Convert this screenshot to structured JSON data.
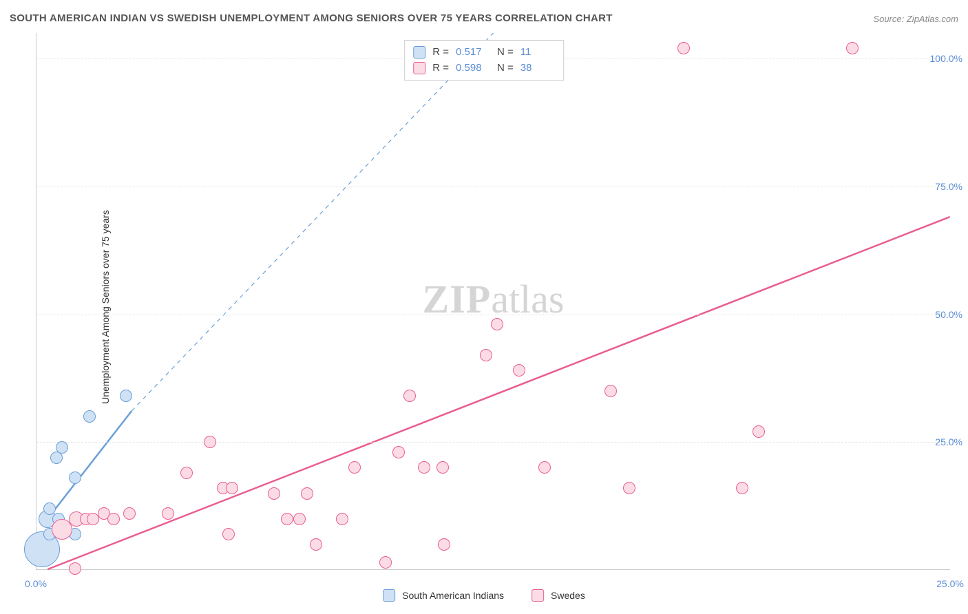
{
  "title": "SOUTH AMERICAN INDIAN VS SWEDISH UNEMPLOYMENT AMONG SENIORS OVER 75 YEARS CORRELATION CHART",
  "source_label": "Source:",
  "source_value": "ZipAtlas.com",
  "y_axis_label": "Unemployment Among Seniors over 75 years",
  "watermark_zip": "ZIP",
  "watermark_atlas": "atlas",
  "chart": {
    "type": "scatter",
    "xlim": [
      0,
      25
    ],
    "ylim": [
      0,
      105
    ],
    "x_ticks": [
      {
        "v": 0,
        "label": "0.0%"
      },
      {
        "v": 25,
        "label": "25.0%"
      }
    ],
    "y_ticks": [
      {
        "v": 25,
        "label": "25.0%"
      },
      {
        "v": 50,
        "label": "50.0%"
      },
      {
        "v": 75,
        "label": "75.0%"
      },
      {
        "v": 100,
        "label": "100.0%"
      }
    ],
    "gridlines_y": [
      25,
      50,
      75,
      100
    ],
    "background_color": "#ffffff",
    "grid_color": "#e5e5e5",
    "axis_color": "#cccccc",
    "tick_label_color": "#5b8dd6",
    "title_color": "#555555",
    "title_fontsize": 15,
    "label_fontsize": 14,
    "point_radius": 9,
    "point_stroke_width": 1.5,
    "series": [
      {
        "id": "sai",
        "label": "South American Indians",
        "fill": "#cfe1f5",
        "stroke": "#6a9ed8",
        "R": "0.517",
        "N": "11",
        "trend": {
          "x1": 0.2,
          "y1": 9,
          "x2": 2.6,
          "y2": 31,
          "dash_x2": 12.5,
          "dash_y2": 105,
          "width": 2.5
        },
        "points": [
          {
            "x": 0.15,
            "y": 4,
            "r": 26
          },
          {
            "x": 0.3,
            "y": 10,
            "r": 13
          },
          {
            "x": 0.35,
            "y": 7,
            "r": 9
          },
          {
            "x": 0.35,
            "y": 12,
            "r": 9
          },
          {
            "x": 0.6,
            "y": 10,
            "r": 9
          },
          {
            "x": 0.55,
            "y": 22,
            "r": 9
          },
          {
            "x": 0.7,
            "y": 24,
            "r": 9
          },
          {
            "x": 1.05,
            "y": 18,
            "r": 9
          },
          {
            "x": 1.05,
            "y": 7,
            "r": 9
          },
          {
            "x": 1.45,
            "y": 30,
            "r": 9
          },
          {
            "x": 2.45,
            "y": 34,
            "r": 9
          }
        ]
      },
      {
        "id": "swe",
        "label": "Swedes",
        "fill": "#fbdce5",
        "stroke": "#e95d92",
        "R": "0.598",
        "N": "38",
        "trend": {
          "x1": 0.3,
          "y1": 0,
          "x2": 25,
          "y2": 69,
          "width": 2.5
        },
        "points": [
          {
            "x": 0.7,
            "y": 8,
            "r": 15
          },
          {
            "x": 1.1,
            "y": 10,
            "r": 11
          },
          {
            "x": 1.35,
            "y": 10,
            "r": 9
          },
          {
            "x": 1.55,
            "y": 10,
            "r": 9
          },
          {
            "x": 1.85,
            "y": 11,
            "r": 9
          },
          {
            "x": 2.1,
            "y": 10,
            "r": 9
          },
          {
            "x": 1.05,
            "y": 0.3,
            "r": 9
          },
          {
            "x": 2.55,
            "y": 11,
            "r": 9
          },
          {
            "x": 3.6,
            "y": 11,
            "r": 9
          },
          {
            "x": 4.1,
            "y": 19,
            "r": 9
          },
          {
            "x": 4.75,
            "y": 25,
            "r": 9
          },
          {
            "x": 5.1,
            "y": 16,
            "r": 9
          },
          {
            "x": 5.35,
            "y": 16,
            "r": 9
          },
          {
            "x": 5.25,
            "y": 7,
            "r": 9
          },
          {
            "x": 6.5,
            "y": 15,
            "r": 9
          },
          {
            "x": 6.85,
            "y": 10,
            "r": 9
          },
          {
            "x": 7.2,
            "y": 10,
            "r": 9
          },
          {
            "x": 7.4,
            "y": 15,
            "r": 9
          },
          {
            "x": 7.65,
            "y": 5,
            "r": 9
          },
          {
            "x": 8.35,
            "y": 10,
            "r": 9
          },
          {
            "x": 8.7,
            "y": 20,
            "r": 9
          },
          {
            "x": 9.55,
            "y": 1.5,
            "r": 9
          },
          {
            "x": 9.9,
            "y": 23,
            "r": 9
          },
          {
            "x": 10.2,
            "y": 34,
            "r": 9
          },
          {
            "x": 10.6,
            "y": 20,
            "r": 9
          },
          {
            "x": 11.1,
            "y": 20,
            "r": 9
          },
          {
            "x": 11.15,
            "y": 5,
            "r": 9
          },
          {
            "x": 12.3,
            "y": 42,
            "r": 9
          },
          {
            "x": 12.6,
            "y": 48,
            "r": 9
          },
          {
            "x": 13.2,
            "y": 39,
            "r": 9
          },
          {
            "x": 13.9,
            "y": 20,
            "r": 9
          },
          {
            "x": 14.1,
            "y": 102,
            "r": 9
          },
          {
            "x": 15.7,
            "y": 35,
            "r": 9
          },
          {
            "x": 16.2,
            "y": 16,
            "r": 9
          },
          {
            "x": 17.7,
            "y": 102,
            "r": 9
          },
          {
            "x": 19.3,
            "y": 16,
            "r": 9
          },
          {
            "x": 19.75,
            "y": 27,
            "r": 9
          },
          {
            "x": 22.3,
            "y": 102,
            "r": 9
          }
        ]
      }
    ]
  },
  "stats_box": {
    "r_label": "R  =",
    "n_label": "N  ="
  }
}
